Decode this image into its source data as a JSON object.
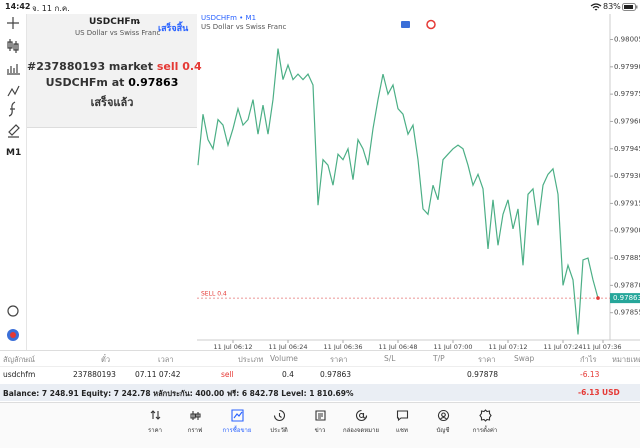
{
  "status_bar": {
    "time": "14:42",
    "date": "จ. 11 ก.ค.",
    "battery": "83%"
  },
  "toolbar": {
    "timeframe": "M1"
  },
  "order_panel": {
    "symbol": "USDCHFm",
    "description": "US Dollar vs Swiss Franc",
    "done_button": "เสร็จสิ้น",
    "line1": "#237880193 market",
    "line1_action": "sell 0.4",
    "line2": "USDCHFm at",
    "line2_price": "0.97863",
    "status": "เสร็จแล้ว"
  },
  "chart_data": {
    "type": "line",
    "title": "USDCHFm • M1",
    "subtitle": "US Dollar vs Swiss Franc",
    "color": "#4caf86",
    "values": [
      0.97936,
      0.97964,
      0.9795,
      0.97945,
      0.97961,
      0.97958,
      0.97947,
      0.97956,
      0.97967,
      0.97958,
      0.97961,
      0.97972,
      0.97953,
      0.97969,
      0.97953,
      0.97972,
      0.98,
      0.97983,
      0.97991,
      0.97983,
      0.97986,
      0.97983,
      0.97986,
      0.9798,
      0.97914,
      0.97939,
      0.97936,
      0.97925,
      0.97942,
      0.97939,
      0.97945,
      0.97928,
      0.9795,
      0.97945,
      0.97936,
      0.97956,
      0.97972,
      0.97986,
      0.97975,
      0.9798,
      0.97967,
      0.97964,
      0.97953,
      0.97958,
      0.97939,
      0.97912,
      0.97909,
      0.97925,
      0.97917,
      0.97939,
      0.97942,
      0.97945,
      0.97947,
      0.97945,
      0.97936,
      0.97925,
      0.97931,
      0.97923,
      0.9789,
      0.97917,
      0.97892,
      0.97909,
      0.97917,
      0.97901,
      0.97912,
      0.97881,
      0.9792,
      0.97923,
      0.97903,
      0.97925,
      0.97931,
      0.97934,
      0.9792,
      0.9787,
      0.97881,
      0.97873,
      0.97843,
      0.97884,
      0.97885,
      0.97873,
      0.97863
    ],
    "xlim": [
      -0.2,
      82.4
    ],
    "xticks": [
      {
        "value": 7,
        "label": "11 Jul 06:12"
      },
      {
        "value": 18,
        "label": "11 Jul 06:24"
      },
      {
        "value": 29,
        "label": "11 Jul 06:36"
      },
      {
        "value": 40,
        "label": "11 Jul 06:48"
      },
      {
        "value": 51,
        "label": "11 Jul 07:00"
      },
      {
        "value": 62,
        "label": "11 Jul 07:12"
      },
      {
        "value": 73,
        "label": "11 Jul 07:24"
      },
      {
        "value": 81,
        "label": "11 Jul 07:36"
      }
    ],
    "ylim": [
      0.9784,
      0.98019
    ],
    "yticks": [
      0.98005,
      {
        "value": 0.9799,
        "label": "0.97990"
      },
      0.97975,
      {
        "value": 0.9796,
        "label": "0.97960"
      },
      0.97945,
      {
        "value": 0.9793,
        "label": "0.97930"
      },
      0.97915,
      {
        "value": 0.979,
        "label": "0.97900"
      },
      0.97885,
      {
        "value": 0.9787,
        "label": "0.97870"
      },
      0.97855
    ],
    "current_price": 0.97863,
    "order_line": {
      "label": "SELL 0.4",
      "value": 0.97863
    }
  },
  "positions_table": {
    "headers": [
      "สัญลักษณ์",
      "ตั๋ว",
      "เวลา",
      "ประเภท",
      "Volume",
      "ราคา",
      "S/L",
      "T/P",
      "ราคา",
      "Swap",
      "กำไร",
      "หมายเหตุ"
    ],
    "row": {
      "symbol": "usdchfm",
      "ticket": "237880193",
      "time": "07.11 07:42",
      "type": "sell",
      "volume": "0.4",
      "price": "0.97863",
      "current_price": "0.97878",
      "profit": "-6.13"
    },
    "summary": "Balance: 7 248.91 Equity: 7 242.78 หลักประกัน: 400.00 ฟรี: 6 842.78 Level: 1 810.69%",
    "total_profit": "-6.13",
    "currency": "USD"
  },
  "nav": [
    "ราคา",
    "กราฟ",
    "การซื้อขาย",
    "ประวัติ",
    "ข่าว",
    "กล่องจดหมาย",
    "แชท",
    "บัญชี",
    "การตั้งค่า"
  ]
}
